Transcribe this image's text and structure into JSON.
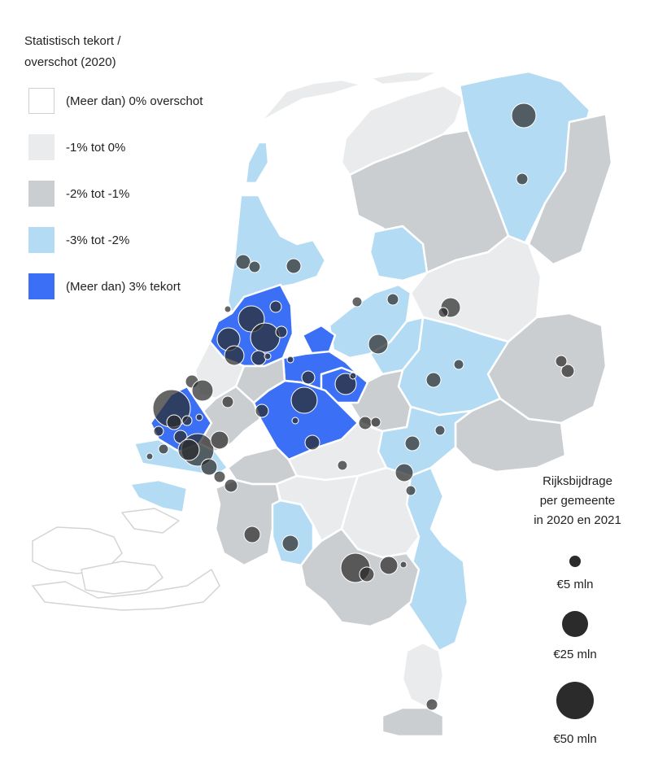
{
  "legend": {
    "title_line1": "Statistisch tekort /",
    "title_line2": "overschot (2020)",
    "items": [
      {
        "label": "(Meer dan) 0% overschot",
        "color": "#ffffff"
      },
      {
        "label": "-1% tot 0%",
        "color": "#e9ebec"
      },
      {
        "label": "-2% tot -1%",
        "color": "#cbced1"
      },
      {
        "label": "-3% tot -2%",
        "color": "#b3dcf4"
      },
      {
        "label": "(Meer dan) 3% tekort",
        "color": "#3b6ff5"
      }
    ]
  },
  "size_legend": {
    "title_line1": "Rijksbijdrage",
    "title_line2": "per gemeente",
    "title_line3": "in 2020 en 2021",
    "items": [
      {
        "label": "€5 mln",
        "value": 5
      },
      {
        "label": "€25 mln",
        "value": 25
      },
      {
        "label": "€50 mln",
        "value": 50
      }
    ]
  },
  "colors": {
    "border": "#ffffff",
    "bubble": "#2b2b2b",
    "outline_only": "#d4d4d4"
  }
}
